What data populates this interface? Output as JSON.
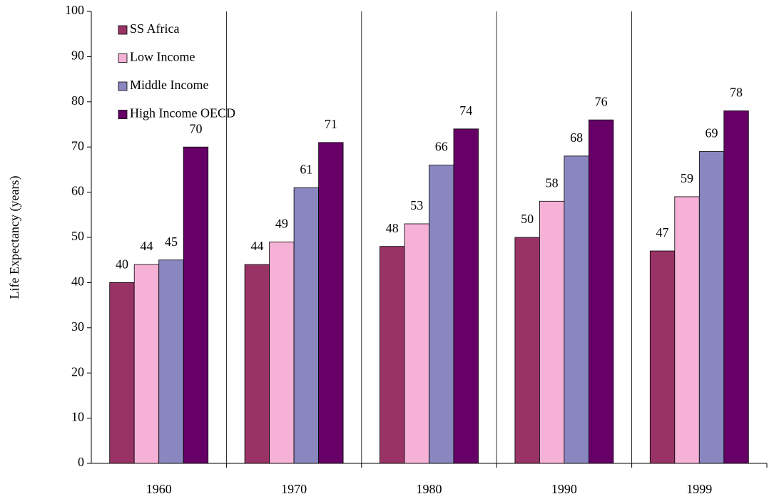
{
  "chart_data": {
    "type": "bar",
    "y_label": "Life Expectancy (years)",
    "categories": [
      "1960",
      "1970",
      "1980",
      "1990",
      "1999"
    ],
    "series": [
      {
        "name": "SS Africa",
        "color": "#993366",
        "values": [
          40,
          44,
          48,
          50,
          47
        ]
      },
      {
        "name": "Low Income",
        "color": "#f5b1d6",
        "values": [
          44,
          49,
          53,
          58,
          59
        ]
      },
      {
        "name": "Middle Income",
        "color": "#8a86c0",
        "values": [
          45,
          61,
          66,
          68,
          69
        ]
      },
      {
        "name": "High Income OECD",
        "color": "#660066",
        "values": [
          70,
          71,
          74,
          76,
          78
        ]
      }
    ],
    "ylim": [
      0,
      100
    ],
    "yticks": [
      0,
      10,
      20,
      30,
      40,
      50,
      60,
      70,
      80,
      90,
      100
    ],
    "legend": "top-left"
  }
}
